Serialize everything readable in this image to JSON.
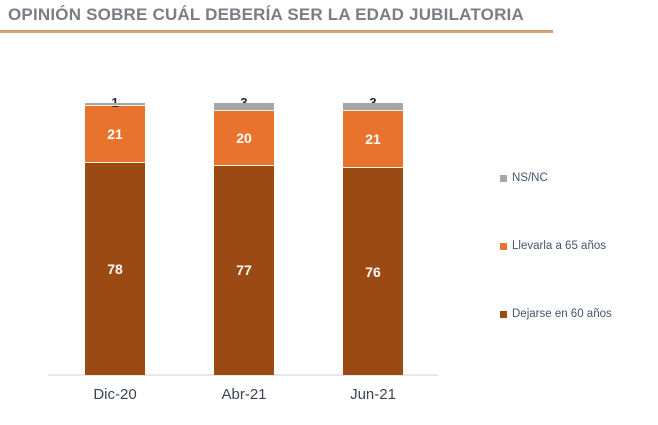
{
  "title": "OPINIÓN SOBRE CUÁL DEBERÍA SER LA EDAD JUBILATORIA",
  "colors": {
    "title_text": "#7a7d83",
    "accent_line": "#e2a06a",
    "axis_line": "#e7e7e7",
    "outside_label": "#1c2534",
    "inside_label": "#fdfcfa",
    "x_label": "#3c4454",
    "legend_text": "#44546a"
  },
  "chart_data": {
    "type": "bar",
    "stacked": true,
    "title": "OPINIÓN SOBRE CUÁL DEBERÍA SER LA EDAD JUBILATORIA",
    "categories": [
      "Dic-20",
      "Abr-21",
      "Jun-21"
    ],
    "series": [
      {
        "name": "Dejarse en 60 años",
        "color": "#9c4a14",
        "values": [
          78,
          77,
          76
        ],
        "label_position": "inside"
      },
      {
        "name": "Llevarla a 65 años",
        "color": "#e8732c",
        "values": [
          21,
          20,
          21
        ],
        "label_position": "inside"
      },
      {
        "name": "NS/NC",
        "color": "#a6a6a6",
        "values": [
          1,
          3,
          3
        ],
        "label_position": "outside-top"
      }
    ],
    "ylim": [
      0,
      100
    ],
    "xlabel": "",
    "ylabel": "",
    "grid": false,
    "value_labels": true,
    "legend_position": "right"
  },
  "legend": {
    "items": [
      {
        "label": "NS/NC",
        "color": "#a6a6a6"
      },
      {
        "label": "Llevarla a 65 años",
        "color": "#e8732c"
      },
      {
        "label": "Dejarse en 60 años",
        "color": "#9c4a14"
      }
    ]
  }
}
